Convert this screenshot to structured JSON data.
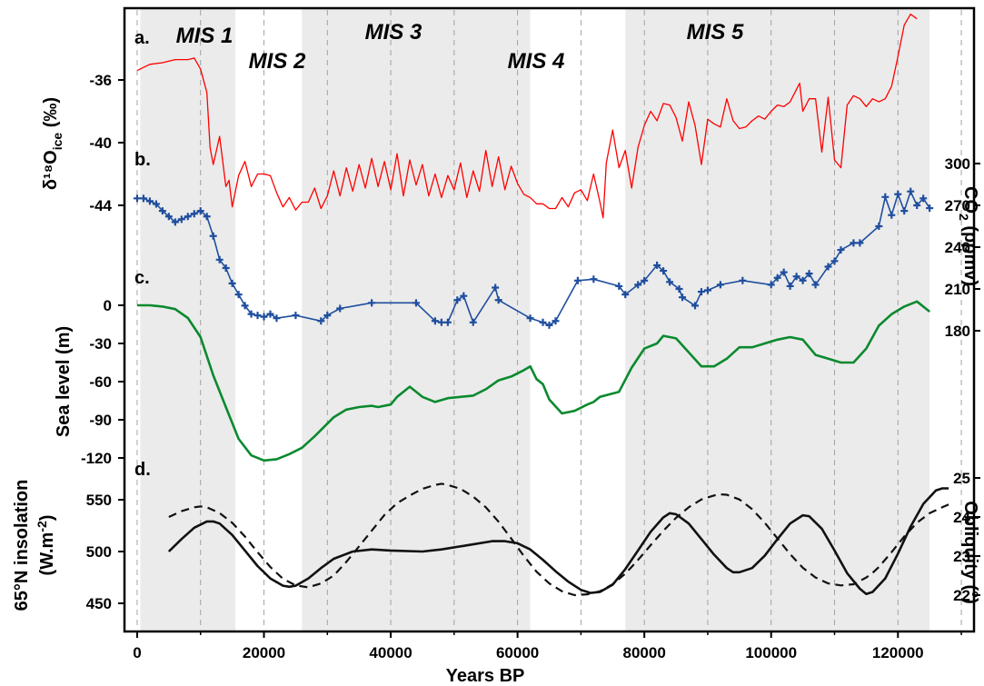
{
  "chart_data": {
    "type": "line",
    "x_axis": {
      "label": "Years BP",
      "range": [
        -2000,
        132000
      ],
      "ticks": [
        0,
        20000,
        40000,
        60000,
        80000,
        100000,
        120000
      ],
      "tick_labels": [
        "0",
        "20000",
        "40000",
        "60000",
        "80000",
        "100000",
        "120000"
      ],
      "minor_ticks": [
        10000,
        30000,
        50000,
        70000,
        90000,
        110000,
        130000
      ]
    },
    "stages": [
      {
        "name": "MIS 1",
        "range": [
          500,
          15500
        ],
        "shaded": true
      },
      {
        "name": "MIS 2",
        "range": [
          15500,
          26000
        ],
        "shaded": false
      },
      {
        "name": "MIS 3",
        "range": [
          26000,
          62000
        ],
        "shaded": true
      },
      {
        "name": "MIS 4",
        "range": [
          62000,
          77000
        ],
        "shaded": false
      },
      {
        "name": "MIS 5",
        "range": [
          77000,
          125000
        ],
        "shaded": true
      }
    ],
    "panels": [
      {
        "id": "a",
        "label": "a.",
        "ylabel": "δ¹⁸O",
        "ylabel_sub": "ice",
        "ylabel_unit": " (‰)",
        "axis_side": "left",
        "ticks": [
          -36,
          -40,
          -44
        ],
        "tick_labels": [
          "-36",
          "-40",
          "-44"
        ],
        "color": "#ff0000",
        "series": {
          "name": "δ18O ice",
          "x": [
            0,
            2000,
            4000,
            6000,
            8000,
            9000,
            10000,
            11000,
            11500,
            12000,
            13000,
            14000,
            14500,
            15000,
            16000,
            17000,
            18000,
            19000,
            20000,
            21000,
            22000,
            23000,
            24000,
            25000,
            26000,
            27000,
            28000,
            29000,
            30000,
            31000,
            32000,
            33000,
            34000,
            35000,
            36000,
            37000,
            38000,
            39000,
            40000,
            41000,
            42000,
            43000,
            44000,
            45000,
            46000,
            47000,
            48000,
            49000,
            50000,
            51000,
            52000,
            53000,
            54000,
            55000,
            56000,
            57000,
            58000,
            59000,
            60000,
            61000,
            62000,
            63000,
            64000,
            65000,
            66000,
            67000,
            68000,
            69000,
            70000,
            71000,
            72000,
            73000,
            73500,
            74000,
            75000,
            76000,
            77000,
            78000,
            79000,
            80000,
            81000,
            82000,
            83000,
            84000,
            85000,
            86000,
            87000,
            88000,
            89000,
            90000,
            91000,
            92000,
            93000,
            94000,
            95000,
            96000,
            97000,
            98000,
            99000,
            100000,
            101000,
            102000,
            103000,
            104000,
            104500,
            105000,
            106000,
            107000,
            108000,
            109000,
            110000,
            111000,
            112000,
            113000,
            114000,
            115000,
            116000,
            117000,
            118000,
            119000,
            120000,
            121000,
            122000,
            123000
          ],
          "values": [
            -35.4,
            -35.0,
            -34.9,
            -34.7,
            -34.7,
            -34.6,
            -35.3,
            -36.8,
            -40.3,
            -41.4,
            -39.6,
            -42.8,
            -42.4,
            -44.1,
            -42.1,
            -41.2,
            -42.8,
            -42.0,
            -42.0,
            -42.1,
            -43.2,
            -44.1,
            -43.5,
            -44.3,
            -43.8,
            -43.8,
            -42.9,
            -44.2,
            -43.4,
            -41.8,
            -43.4,
            -41.6,
            -43.1,
            -41.4,
            -42.9,
            -41.0,
            -42.8,
            -41.2,
            -43.0,
            -40.7,
            -43.4,
            -41.1,
            -42.7,
            -41.4,
            -43.4,
            -42.0,
            -43.5,
            -42.1,
            -43.0,
            -41.3,
            -43.5,
            -41.8,
            -43.1,
            -40.5,
            -42.8,
            -40.9,
            -43.0,
            -41.5,
            -42.6,
            -43.3,
            -43.5,
            -43.9,
            -43.9,
            -44.2,
            -44.2,
            -43.5,
            -44.1,
            -43.2,
            -43.0,
            -43.7,
            -42.0,
            -43.8,
            -44.8,
            -41.3,
            -39.2,
            -41.6,
            -40.5,
            -42.9,
            -40.3,
            -38.9,
            -38.0,
            -38.6,
            -37.5,
            -37.6,
            -38.4,
            -39.9,
            -37.4,
            -38.9,
            -41.4,
            -38.5,
            -38.8,
            -39.0,
            -37.2,
            -38.6,
            -39.1,
            -39.0,
            -38.6,
            -38.3,
            -38.5,
            -38.0,
            -37.6,
            -37.7,
            -37.4,
            -36.6,
            -36.2,
            -38.0,
            -37.2,
            -37.2,
            -40.6,
            -37.1,
            -41.1,
            -41.6,
            -37.6,
            -37.0,
            -37.2,
            -37.7,
            -37.2,
            -37.4,
            -37.2,
            -36.4,
            -34.5,
            -32.5,
            -31.8,
            -32.1
          ]
        }
      },
      {
        "id": "b",
        "label": "b.",
        "ylabel": "CO",
        "ylabel_sub": "2",
        "ylabel_unit": " (ppmv)",
        "axis_side": "right",
        "ticks": [
          180,
          210,
          240,
          270,
          300
        ],
        "tick_labels": [
          "180",
          "210",
          "240",
          "270",
          "300"
        ],
        "color": "#1f4e9e",
        "series": {
          "name": "CO2",
          "x": [
            0,
            1000,
            2000,
            3000,
            4000,
            5000,
            6000,
            7000,
            8000,
            9000,
            10000,
            11000,
            12000,
            13000,
            14000,
            15000,
            16000,
            17000,
            18000,
            19000,
            20000,
            21000,
            22000,
            25000,
            29000,
            30000,
            32000,
            37000,
            44000,
            47000,
            48000,
            49000,
            50500,
            51500,
            53000,
            56500,
            57000,
            62000,
            64000,
            65000,
            66000,
            69500,
            72000,
            76000,
            77000,
            79000,
            80000,
            82000,
            83000,
            84000,
            85500,
            86000,
            88000,
            89000,
            90000,
            92000,
            95500,
            100000,
            101000,
            102000,
            103000,
            104000,
            105000,
            106000,
            107000,
            109000,
            110000,
            111000,
            113000,
            114000,
            117000,
            118000,
            119000,
            120000,
            121000,
            122000,
            123000,
            124000,
            125000
          ],
          "values": [
            275,
            275,
            273,
            271,
            266,
            262,
            258,
            260,
            262,
            264,
            266,
            262,
            248,
            231,
            225,
            214,
            206,
            198,
            192,
            191,
            190,
            192,
            189,
            191,
            187,
            191,
            196,
            200,
            200,
            187,
            186,
            186,
            202,
            205,
            186,
            211,
            202,
            189,
            186,
            184,
            187,
            216,
            217,
            212,
            206,
            213,
            216,
            227,
            223,
            215,
            210,
            204,
            198,
            208,
            209,
            213,
            216,
            213,
            218,
            222,
            212,
            219,
            216,
            221,
            213,
            226,
            230,
            238,
            243,
            243,
            255,
            276,
            263,
            278,
            266,
            280,
            270,
            275,
            268
          ]
        }
      },
      {
        "id": "c",
        "label": "c.",
        "ylabel": "Sea level (m)",
        "axis_side": "left",
        "ticks": [
          0,
          -30,
          -60,
          -90,
          -120
        ],
        "tick_labels": [
          "0",
          "-30",
          "-60",
          "-90",
          "-120"
        ],
        "color": "#0a8a2e",
        "series": {
          "name": "Sea level",
          "x": [
            0,
            2000,
            4000,
            6000,
            8000,
            10000,
            12000,
            14000,
            16000,
            18000,
            20000,
            22000,
            24000,
            26000,
            28000,
            29000,
            31000,
            33000,
            35000,
            37000,
            38000,
            40000,
            41000,
            43000,
            45000,
            47000,
            49000,
            51000,
            53000,
            55000,
            57000,
            59000,
            61000,
            62000,
            63000,
            64000,
            65000,
            67000,
            69000,
            71000,
            72000,
            73000,
            76000,
            78000,
            80000,
            82000,
            83000,
            85000,
            87000,
            89000,
            91000,
            93000,
            95000,
            97000,
            99000,
            101000,
            103000,
            105000,
            107000,
            109000,
            111000,
            113000,
            115000,
            117000,
            119000,
            121000,
            123000,
            125000
          ],
          "values": [
            0,
            0,
            -1,
            -3,
            -10,
            -25,
            -55,
            -80,
            -105,
            -118,
            -122,
            -121,
            -117,
            -112,
            -103,
            -98,
            -88,
            -82,
            -80,
            -79,
            -80,
            -78,
            -72,
            -64,
            -72,
            -76,
            -73,
            -72,
            -71,
            -66,
            -59,
            -56,
            -51,
            -48,
            -58,
            -62,
            -74,
            -85,
            -83,
            -78,
            -76,
            -72,
            -68,
            -49,
            -34,
            -30,
            -24,
            -26,
            -37,
            -48,
            -48,
            -42,
            -33,
            -33,
            -30,
            -27,
            -25,
            -27,
            -39,
            -42,
            -45,
            -45,
            -34,
            -16,
            -7,
            -1,
            3,
            -5
          ]
        }
      },
      {
        "id": "d",
        "label": "d.",
        "ylabel": "65°N insolation",
        "ylabel_line2": "(W.m",
        "ylabel_sup": "-2",
        "ylabel_line2_end": ")",
        "axis_side": "left",
        "ticks": [
          450,
          500,
          550
        ],
        "tick_labels": [
          "450",
          "500",
          "550"
        ],
        "right_ylabel": "Obliquity (°)",
        "right_ticks": [
          22,
          23,
          24,
          25
        ],
        "right_tick_labels": [
          "22",
          "23",
          "24",
          "25"
        ],
        "series": [
          {
            "name": "65°N insolation",
            "color": "#111111",
            "dash": "solid",
            "x": [
              5000,
              7000,
              9000,
              11000,
              12000,
              13000,
              15000,
              17000,
              19000,
              21000,
              23000,
              24000,
              25000,
              27000,
              29000,
              31000,
              34000,
              37000,
              40000,
              45000,
              48000,
              52000,
              56000,
              58000,
              60000,
              62000,
              64000,
              66000,
              68000,
              70000,
              71500,
              73000,
              75000,
              77000,
              79000,
              81000,
              83000,
              84000,
              85000,
              87000,
              89000,
              91000,
              93000,
              94000,
              95000,
              97000,
              99000,
              101000,
              103000,
              105000,
              106000,
              108000,
              110000,
              112000,
              114000,
              115000,
              116000,
              118000,
              120000,
              122000,
              124000,
              126000,
              127000,
              128000
            ],
            "values": [
              500,
              512,
              523,
              529,
              529,
              527,
              516,
              501,
              486,
              474,
              467,
              466,
              467,
              474,
              484,
              493,
              500,
              502,
              501,
              500,
              502,
              506,
              510,
              510,
              508,
              502,
              492,
              481,
              471,
              463,
              460,
              461,
              468,
              483,
              501,
              519,
              533,
              537,
              536,
              527,
              512,
              497,
              484,
              480,
              480,
              484,
              496,
              512,
              527,
              535,
              534,
              522,
              501,
              479,
              464,
              459,
              461,
              474,
              498,
              524,
              546,
              559,
              561,
              561
            ]
          },
          {
            "name": "Obliquity",
            "color": "#111111",
            "dash": "dashed",
            "x": [
              5000,
              7000,
              9000,
              10000,
              11000,
              13000,
              15000,
              17000,
              19000,
              21000,
              23000,
              25000,
              27000,
              29000,
              31000,
              33000,
              35000,
              37000,
              39000,
              41000,
              43000,
              45000,
              47000,
              48000,
              49000,
              51000,
              53000,
              55000,
              57000,
              59000,
              61000,
              63000,
              65000,
              67000,
              69000,
              71000,
              73000,
              75000,
              77000,
              79000,
              81000,
              83000,
              85000,
              87000,
              89000,
              91000,
              92000,
              93000,
              95000,
              97000,
              99000,
              101000,
              103000,
              105000,
              107000,
              109000,
              111000,
              113000,
              115000,
              116000,
              117000,
              119000,
              121000,
              123000,
              125000,
              127000,
              128000
            ],
            "values": [
              24.0,
              24.15,
              24.25,
              24.27,
              24.25,
              24.1,
              23.85,
              23.5,
              23.1,
              22.72,
              22.42,
              22.25,
              22.2,
              22.3,
              22.5,
              22.85,
              23.25,
              23.65,
              24.05,
              24.35,
              24.55,
              24.72,
              24.82,
              24.85,
              24.82,
              24.72,
              24.52,
              24.25,
              23.88,
              23.45,
              23.0,
              22.6,
              22.3,
              22.1,
              22.0,
              22.02,
              22.1,
              22.28,
              22.55,
              22.9,
              23.28,
              23.65,
              23.98,
              24.25,
              24.45,
              24.55,
              24.58,
              24.57,
              24.45,
              24.2,
              23.85,
              23.45,
              23.05,
              22.7,
              22.45,
              22.3,
              22.25,
              22.28,
              22.45,
              22.57,
              22.72,
              23.1,
              23.5,
              23.85,
              24.1,
              24.25,
              24.32
            ]
          }
        ]
      }
    ]
  }
}
